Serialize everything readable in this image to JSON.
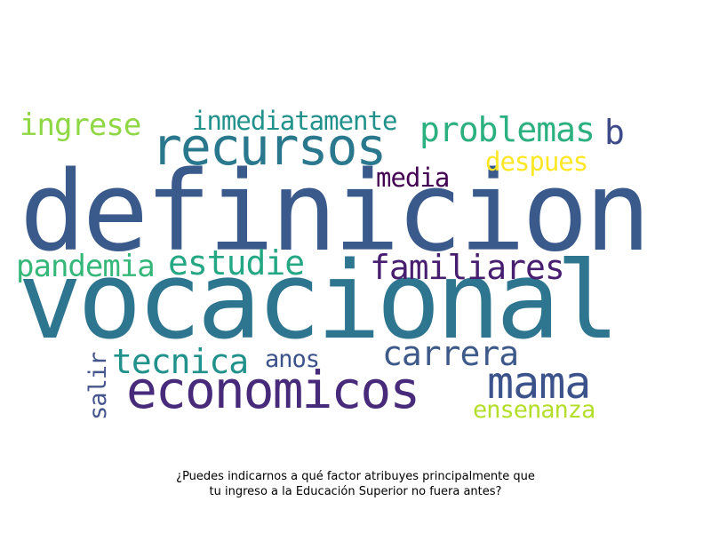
{
  "words": {
    "definicion": {
      "text": "definicion",
      "color": "#3b5a8c"
    },
    "vocacional": {
      "text": "vocacional",
      "color": "#2e7590"
    },
    "recursos": {
      "text": "recursos",
      "color": "#2a788e"
    },
    "economicos": {
      "text": "economicos",
      "color": "#472a7a"
    },
    "mama": {
      "text": "mama",
      "color": "#3b528b"
    },
    "problemas": {
      "text": "problemas",
      "color": "#2bb07f"
    },
    "familiares": {
      "text": "familiares",
      "color": "#481f70"
    },
    "estudie": {
      "text": "estudie",
      "color": "#24a884"
    },
    "tecnica": {
      "text": "tecnica",
      "color": "#21918c"
    },
    "carrera": {
      "text": "carrera",
      "color": "#3e5a8a"
    },
    "ingrese": {
      "text": "ingrese",
      "color": "#8fd744"
    },
    "pandemia": {
      "text": "pandemia",
      "color": "#35b779"
    },
    "inmediatamente": {
      "text": "inmediatamente",
      "color": "#21918c"
    },
    "b": {
      "text": "b",
      "color": "#3e4a89"
    },
    "despues": {
      "text": "despues",
      "color": "#fde725"
    },
    "media": {
      "text": "media",
      "color": "#440154"
    },
    "anos": {
      "text": "anos",
      "color": "#3b528b"
    },
    "ensenanza": {
      "text": "ensenanza",
      "color": "#b5de2b"
    },
    "salir": {
      "text": "salir",
      "color": "#46568d"
    }
  },
  "caption": {
    "line1": "¿Puedes indicarnos a qué factor atribuyes principalmente que",
    "line2": "tu ingreso a la Educación Superior no fuera antes?"
  }
}
